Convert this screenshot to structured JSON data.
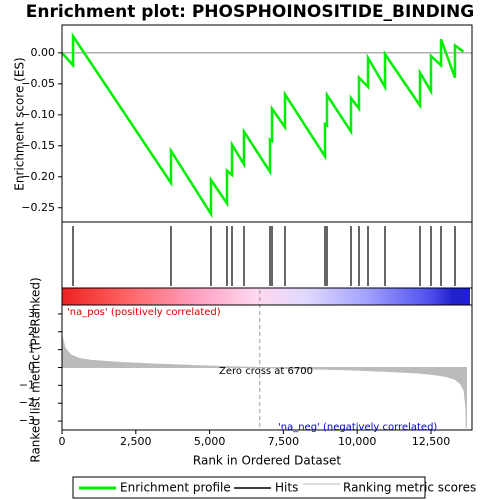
{
  "title": "Enrichment plot: PHOSPHOINOSITIDE_BINDING",
  "legend": [
    "Enrichment profile",
    "Hits",
    "Ranking metric scores"
  ],
  "chart_data": [
    {
      "type": "line",
      "y_label": "Enrichment score (ES)",
      "xlim": [
        0,
        13889
      ],
      "ylim": [
        -0.273,
        0.045
      ],
      "yticks": [
        {
          "value": 0,
          "label": "0.00"
        },
        {
          "value": -0.05,
          "label": "−0.05"
        },
        {
          "value": -0.1,
          "label": "−0.10"
        },
        {
          "value": -0.15,
          "label": "−0.15"
        },
        {
          "value": -0.2,
          "label": "−0.20"
        },
        {
          "value": -0.25,
          "label": "−0.25"
        }
      ],
      "series": [
        {
          "name": "Enrichment profile",
          "color": "#00ee00",
          "x": [
            0,
            373,
            373,
            3692,
            3692,
            5047,
            5047,
            5589,
            5589,
            5759,
            5759,
            6165,
            6165,
            7046,
            7046,
            7114,
            7114,
            7554,
            7554,
            8909,
            8909,
            8977,
            8977,
            9790,
            9790,
            10061,
            10061,
            10366,
            10366,
            10942,
            10942,
            12127,
            12127,
            12500,
            12500,
            12839,
            12839,
            13313,
            13313,
            13600
          ],
          "values": [
            0,
            -0.02,
            0.027,
            -0.21,
            -0.158,
            -0.26,
            -0.205,
            -0.243,
            -0.19,
            -0.197,
            -0.148,
            -0.18,
            -0.127,
            -0.192,
            -0.14,
            -0.142,
            -0.09,
            -0.12,
            -0.067,
            -0.167,
            -0.115,
            -0.117,
            -0.068,
            -0.127,
            -0.073,
            -0.09,
            -0.04,
            -0.055,
            -0.008,
            -0.055,
            -0.002,
            -0.085,
            -0.032,
            -0.062,
            -0.005,
            -0.02,
            0.022,
            -0.04,
            0.012,
            0.002
          ]
        }
      ],
      "hits": [
        373,
        3692,
        5047,
        5589,
        5759,
        6165,
        7046,
        7114,
        7554,
        8909,
        8977,
        9790,
        10061,
        10366,
        10942,
        12127,
        12500,
        12839,
        13313
      ]
    },
    {
      "type": "area",
      "x_label": "Rank in Ordered Dataset",
      "y_label": "Ranked list metric (PreRanked)",
      "xlim": [
        0,
        13889
      ],
      "ylim": [
        -3.5,
        3.5
      ],
      "xticks": [
        0,
        {
          "value": 2500,
          "label": "2,500"
        },
        {
          "value": 5000,
          "label": "5,000"
        },
        {
          "value": 7500,
          "label": "7,500"
        },
        {
          "value": 10000,
          "label": "10,000"
        },
        {
          "value": 12500,
          "label": "12,500"
        }
      ],
      "yticks": [
        3,
        2,
        1,
        0,
        {
          "value": -1,
          "label": "−1"
        },
        {
          "value": -2,
          "label": "−2"
        },
        {
          "value": -3,
          "label": "−3"
        }
      ],
      "color": "#bbbbbb",
      "x": [
        0,
        100,
        300,
        600,
        1000,
        2000,
        3000,
        4000,
        5000,
        6000,
        6700,
        8000,
        9000,
        10000,
        11000,
        12000,
        12500,
        13000,
        13300,
        13500,
        13620,
        13680,
        13700
      ],
      "values": [
        1.8,
        1.1,
        0.7,
        0.5,
        0.4,
        0.28,
        0.2,
        0.14,
        0.08,
        0.03,
        0,
        -0.06,
        -0.1,
        -0.15,
        -0.22,
        -0.3,
        -0.38,
        -0.5,
        -0.65,
        -0.9,
        -1.3,
        -2.2,
        -3.4
      ],
      "zero_cross": 6700,
      "annotations": [
        "Zero cross at 6700",
        "'na_pos' (positively correlated)",
        "'na_neg' (negatively correlated)"
      ]
    }
  ]
}
